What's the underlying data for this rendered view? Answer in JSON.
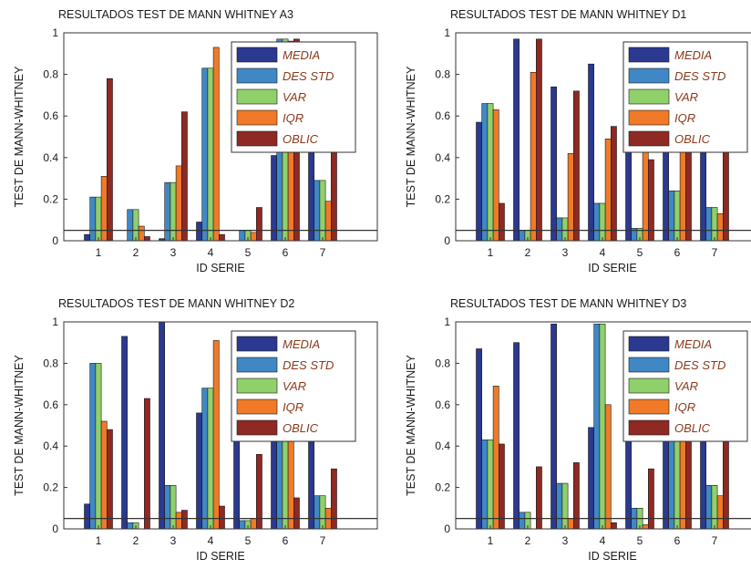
{
  "colors": {
    "series": [
      "#2b3990",
      "#3f88c5",
      "#8fd06a",
      "#f07a28",
      "#8e2a23"
    ],
    "axis": "#333333",
    "threshold": "#333333"
  },
  "chart_data": [
    {
      "type": "bar",
      "title": "RESULTADOS TEST DE MANN WHITNEY A3",
      "xlabel": "ID SERIE",
      "ylabel": "TEST DE MANN-WHITNEY",
      "categories": [
        "1",
        "2",
        "3",
        "4",
        "5",
        "6",
        "7"
      ],
      "yticks": [
        "0",
        "0.2",
        "0.4",
        "0.6",
        "0.8",
        "1"
      ],
      "ylim": [
        0,
        1
      ],
      "threshold": 0.05,
      "legend": "top-right",
      "series": [
        {
          "name": "MEDIA",
          "values": [
            0.03,
            0.0,
            0.01,
            0.09,
            0.0,
            0.41,
            0.45
          ]
        },
        {
          "name": "DES STD",
          "values": [
            0.21,
            0.15,
            0.28,
            0.83,
            0.05,
            0.97,
            0.29
          ]
        },
        {
          "name": "VAR",
          "values": [
            0.21,
            0.15,
            0.28,
            0.83,
            0.05,
            0.97,
            0.29
          ]
        },
        {
          "name": "IQR",
          "values": [
            0.31,
            0.07,
            0.36,
            0.93,
            0.04,
            0.96,
            0.19
          ]
        },
        {
          "name": "OBLIC",
          "values": [
            0.78,
            0.02,
            0.62,
            0.03,
            0.16,
            0.97,
            0.45
          ]
        }
      ]
    },
    {
      "type": "bar",
      "title": "RESULTADOS TEST DE MANN WHITNEY D1",
      "xlabel": "ID SERIE",
      "ylabel": "TEST DE MANN-WHITNEY",
      "categories": [
        "1",
        "2",
        "3",
        "4",
        "5",
        "6",
        "7"
      ],
      "yticks": [
        "0",
        "0.2",
        "0.4",
        "0.6",
        "0.8",
        "1"
      ],
      "ylim": [
        0,
        1
      ],
      "threshold": 0.05,
      "legend": "top-right",
      "series": [
        {
          "name": "MEDIA",
          "values": [
            0.57,
            0.97,
            0.74,
            0.85,
            0.45,
            0.45,
            0.45
          ]
        },
        {
          "name": "DES STD",
          "values": [
            0.66,
            0.05,
            0.11,
            0.18,
            0.06,
            0.24,
            0.16
          ]
        },
        {
          "name": "VAR",
          "values": [
            0.66,
            0.05,
            0.11,
            0.18,
            0.06,
            0.24,
            0.16
          ]
        },
        {
          "name": "IQR",
          "values": [
            0.63,
            0.81,
            0.42,
            0.49,
            0.45,
            0.45,
            0.13
          ]
        },
        {
          "name": "OBLIC",
          "values": [
            0.18,
            0.97,
            0.72,
            0.55,
            0.39,
            0.45,
            0.45
          ]
        }
      ]
    },
    {
      "type": "bar",
      "title": "RESULTADOS TEST DE MANN WHITNEY D2",
      "xlabel": "ID SERIE",
      "ylabel": "TEST DE MANN-WHITNEY",
      "categories": [
        "1",
        "2",
        "3",
        "4",
        "5",
        "6",
        "7"
      ],
      "yticks": [
        "0",
        "0.2",
        "0.4",
        "0.6",
        "0.8",
        "1"
      ],
      "ylim": [
        0,
        1
      ],
      "threshold": 0.05,
      "legend": "top-right",
      "series": [
        {
          "name": "MEDIA",
          "values": [
            0.12,
            0.93,
            1.0,
            0.56,
            0.45,
            0.45,
            0.45
          ]
        },
        {
          "name": "DES STD",
          "values": [
            0.8,
            0.03,
            0.21,
            0.68,
            0.04,
            0.45,
            0.16
          ]
        },
        {
          "name": "VAR",
          "values": [
            0.8,
            0.03,
            0.21,
            0.68,
            0.04,
            0.45,
            0.16
          ]
        },
        {
          "name": "IQR",
          "values": [
            0.52,
            0.0,
            0.08,
            0.91,
            0.05,
            0.45,
            0.1
          ]
        },
        {
          "name": "OBLIC",
          "values": [
            0.48,
            0.63,
            0.09,
            0.11,
            0.36,
            0.15,
            0.29
          ]
        }
      ]
    },
    {
      "type": "bar",
      "title": "RESULTADOS TEST DE MANN WHITNEY D3",
      "xlabel": "ID SERIE",
      "ylabel": "TEST DE MANN-WHITNEY",
      "categories": [
        "1",
        "2",
        "3",
        "4",
        "5",
        "6",
        "7"
      ],
      "yticks": [
        "0",
        "0.2",
        "0.4",
        "0.6",
        "0.8",
        "1"
      ],
      "ylim": [
        0,
        1
      ],
      "threshold": 0.05,
      "legend": "top-right",
      "series": [
        {
          "name": "MEDIA",
          "values": [
            0.87,
            0.9,
            0.99,
            0.49,
            0.45,
            0.45,
            0.45
          ]
        },
        {
          "name": "DES STD",
          "values": [
            0.43,
            0.08,
            0.22,
            0.99,
            0.1,
            0.45,
            0.21
          ]
        },
        {
          "name": "VAR",
          "values": [
            0.43,
            0.08,
            0.22,
            0.99,
            0.1,
            0.45,
            0.21
          ]
        },
        {
          "name": "IQR",
          "values": [
            0.69,
            0.0,
            0.05,
            0.6,
            0.02,
            0.45,
            0.16
          ]
        },
        {
          "name": "OBLIC",
          "values": [
            0.41,
            0.3,
            0.32,
            0.03,
            0.29,
            0.45,
            0.45
          ]
        }
      ]
    }
  ]
}
